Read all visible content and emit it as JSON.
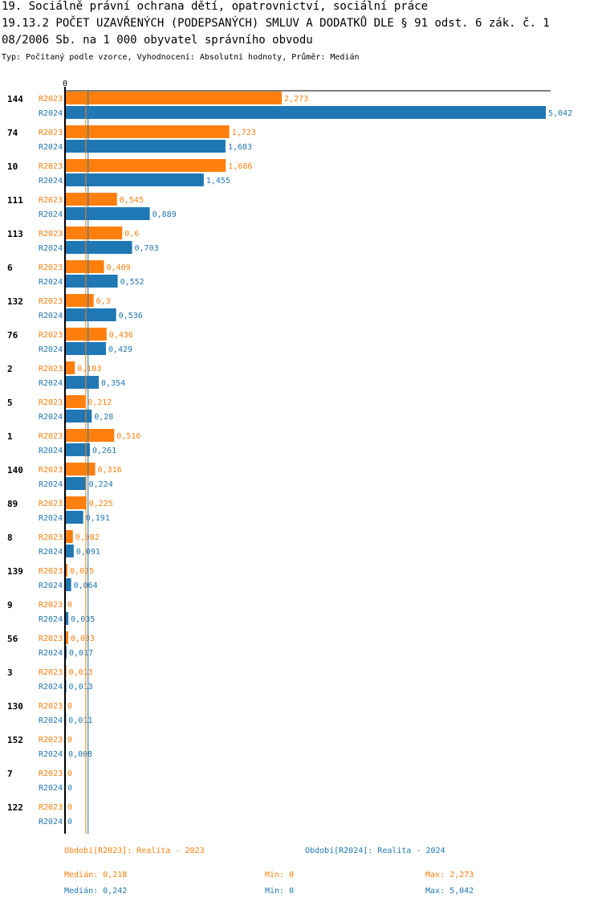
{
  "title_lines": [
    "19. Sociálně právní ochrana dětí, opatrovnictví, sociální práce",
    "19.13.2 POČET UZAVŘENÝCH (PODEPSANÝCH) SMLUV A DODATKŮ DLE § 91 odst. 6 zák. č. 1",
    "08/2006 Sb. na 1 000 obyvatel správního obvodu"
  ],
  "subtitle": "Typ: Počítaný podle vzorce, Vyhodnocení: Absolutní hodnoty, Průměr: Medián",
  "colors": {
    "r2023": "#ff7f0e",
    "r2024": "#1f77b4",
    "axis": "#000000"
  },
  "chart_data": {
    "type": "bar",
    "orientation": "horizontal",
    "axis_zero_label": "0",
    "xlim": [
      0,
      5.042
    ],
    "categories": [
      "144",
      "74",
      "10",
      "111",
      "113",
      "6",
      "132",
      "76",
      "2",
      "5",
      "1",
      "140",
      "89",
      "8",
      "139",
      "9",
      "56",
      "3",
      "130",
      "152",
      "7",
      "122"
    ],
    "series": [
      {
        "name": "R2023",
        "values": [
          2.273,
          1.723,
          1.686,
          0.545,
          0.6,
          0.409,
          0.3,
          0.436,
          0.103,
          0.212,
          0.516,
          0.316,
          0.225,
          0.082,
          0.025,
          0,
          0.033,
          0.013,
          0,
          0,
          0,
          0
        ],
        "labels": [
          "2,273",
          "1,723",
          "1,686",
          "0,545",
          "0,6",
          "0,409",
          "0,3",
          "0,436",
          "0,103",
          "0,212",
          "0,516",
          "0,316",
          "0,225",
          "0,082",
          "0,025",
          "0",
          "0,033",
          "0,013",
          "0",
          "0",
          "0",
          "0"
        ],
        "median": 0.218
      },
      {
        "name": "R2024",
        "values": [
          5.042,
          1.683,
          1.455,
          0.889,
          0.703,
          0.552,
          0.536,
          0.429,
          0.354,
          0.28,
          0.261,
          0.224,
          0.191,
          0.091,
          0.064,
          0.035,
          0.017,
          0.013,
          0.011,
          0.008,
          0,
          0
        ],
        "labels": [
          "5,042",
          "1,683",
          "1,455",
          "0,889",
          "0,703",
          "0,552",
          "0,536",
          "0,429",
          "0,354",
          "0,28",
          "0,261",
          "0,224",
          "0,191",
          "0,091",
          "0,064",
          "0,035",
          "0,017",
          "0,013",
          "0,011",
          "0,008",
          "0",
          "0"
        ],
        "median": 0.242
      }
    ]
  },
  "footer": {
    "legend_2023": "Období[R2023]: Realita - 2023",
    "legend_2024": "Období[R2024]: Realita - 2024",
    "median_2023": "Medián: 0,218",
    "min_2023": "Min: 0",
    "max_2023": "Max: 2,273",
    "median_2024": "Medián: 0,242",
    "min_2024": "Min: 0",
    "max_2024": "Max: 5,042"
  }
}
